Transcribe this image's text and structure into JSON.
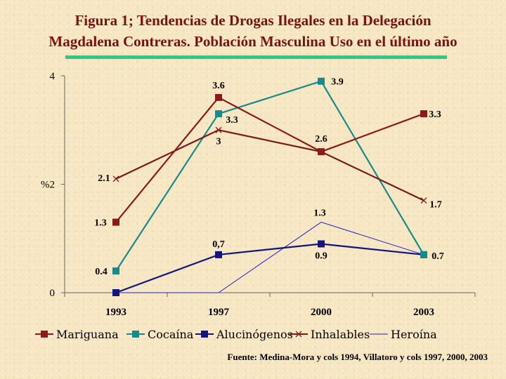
{
  "title_line1": "Figura 1; Tendencias de Drogas Ilegales en  la Delegación",
  "title_line2": "Magdalena Contreras. Población Masculina Uso en el último año",
  "source": "Fuente: Medina-Mora y cols 1994, Villatoro y cols 1997, 2000, 2003",
  "chart_data": {
    "type": "line",
    "title": "Figura 1; Tendencias de Drogas Ilegales en  la Delegación Magdalena Contreras. Población Masculina Uso en el último año",
    "categories": [
      "1993",
      "1997",
      "2000",
      "2003"
    ],
    "ylabel": "%",
    "ylim": [
      0,
      4
    ],
    "yticks": [
      "0",
      "2",
      "4"
    ],
    "legend_position": "bottom",
    "grid": false,
    "series": [
      {
        "name": "Mariguana",
        "color": "#8b1a1a",
        "marker": "square",
        "values": [
          1.3,
          3.6,
          2.6,
          3.3
        ],
        "labels": [
          "1.3",
          "3.6",
          "2.6",
          "3.3"
        ]
      },
      {
        "name": "Cocaína",
        "color": "#178b8b",
        "marker": "square",
        "values": [
          0.4,
          3.3,
          3.9,
          0.7
        ],
        "labels": [
          "0.4",
          "3.3",
          "3.9",
          "0.7"
        ]
      },
      {
        "name": "Alucinógenos",
        "color": "#141480",
        "marker": "square",
        "values": [
          0,
          0.7,
          0.9,
          0.7
        ],
        "labels": [
          "",
          "0,7",
          "0.9",
          ""
        ]
      },
      {
        "name": "Inhalables",
        "color": "#7a1a1a",
        "marker": "x",
        "values": [
          2.1,
          3,
          2.6,
          1.7
        ],
        "labels": [
          "2.1",
          "3",
          "",
          "1.7"
        ]
      },
      {
        "name": "Heroína",
        "color": "#2020d0",
        "marker": "none",
        "values": [
          0,
          0,
          1.3,
          0.7
        ],
        "labels": [
          "",
          "",
          "1.3",
          ""
        ]
      }
    ]
  }
}
